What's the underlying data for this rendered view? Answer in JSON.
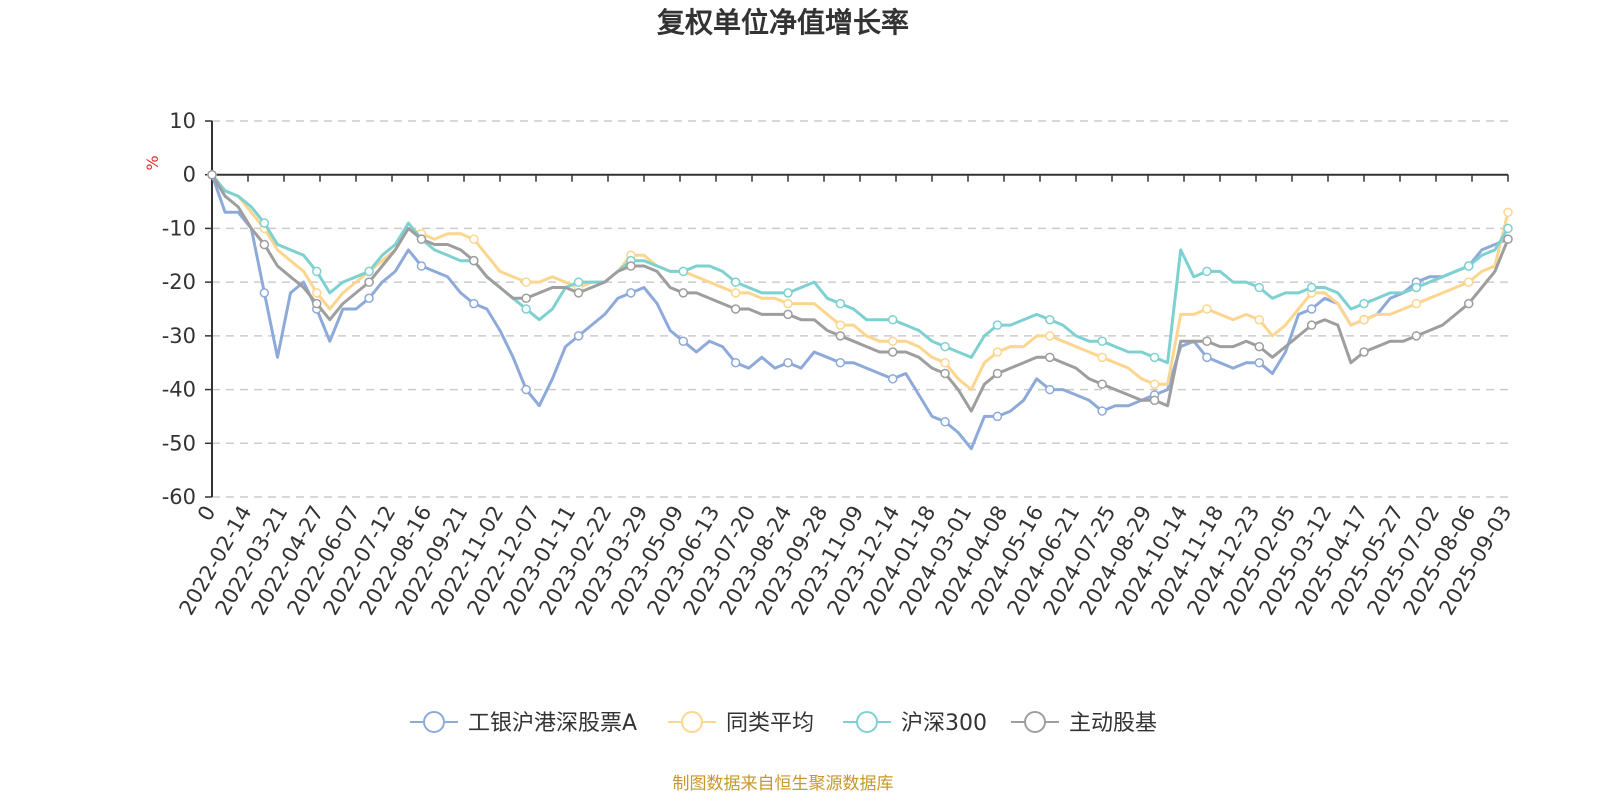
{
  "chart_data": {
    "type": "line",
    "title": "复权单位净值增长率",
    "y_unit": "%",
    "ylim": [
      -60,
      10
    ],
    "yticks": [
      10,
      0,
      -10,
      -20,
      -30,
      -40,
      -50,
      -60
    ],
    "x_start_label": "0",
    "x_tick_labels": [
      "2022-02-14",
      "2022-03-21",
      "2022-04-27",
      "2022-06-07",
      "2022-07-12",
      "2022-08-16",
      "2022-09-21",
      "2022-11-02",
      "2022-12-07",
      "2023-01-11",
      "2023-02-22",
      "2023-03-29",
      "2023-05-09",
      "2023-06-13",
      "2023-07-20",
      "2023-08-24",
      "2023-09-28",
      "2023-11-09",
      "2023-12-14",
      "2024-01-18",
      "2024-03-01",
      "2024-04-08",
      "2024-05-16",
      "2024-06-21",
      "2024-07-25",
      "2024-08-29",
      "2024-10-14",
      "2024-11-18",
      "2024-12-23",
      "2025-02-05",
      "2025-03-12",
      "2025-04-17",
      "2025-05-27",
      "2025-07-02",
      "2025-08-06",
      "2025-09-03"
    ],
    "grid": true,
    "legend_position": "bottom",
    "series": [
      {
        "name": "工银沪港深股票A",
        "color": "#8eaadb",
        "values": [
          0,
          -7,
          -7,
          -10,
          -22,
          -34,
          -22,
          -20,
          -25,
          -31,
          -25,
          -25,
          -23,
          -20,
          -18,
          -14,
          -17,
          -18,
          -19,
          -22,
          -24,
          -25,
          -29,
          -34,
          -40,
          -43,
          -38,
          -32,
          -30,
          -28,
          -26,
          -23,
          -22,
          -21,
          -24,
          -29,
          -31,
          -33,
          -31,
          -32,
          -35,
          -36,
          -34,
          -36,
          -35,
          -36,
          -33,
          -34,
          -35,
          -35,
          -36,
          -37,
          -38,
          -37,
          -41,
          -45,
          -46,
          -48,
          -51,
          -45,
          -45,
          -44,
          -42,
          -38,
          -40,
          -40,
          -41,
          -42,
          -44,
          -43,
          -43,
          -42,
          -41,
          -40,
          -32,
          -31,
          -34,
          -35,
          -36,
          -35,
          -35,
          -37,
          -33,
          -26,
          -25,
          -23,
          -24,
          -28,
          -27,
          -26,
          -23,
          -22,
          -20,
          -19,
          -19,
          -18,
          -17,
          -14,
          -13,
          -12
        ]
      },
      {
        "name": "同类平均",
        "color": "#fcd68e",
        "values": [
          0,
          -3,
          -4,
          -7,
          -10,
          -14,
          -16,
          -18,
          -22,
          -25,
          -22,
          -20,
          -18,
          -16,
          -14,
          -10,
          -11,
          -12,
          -11,
          -11,
          -12,
          -15,
          -18,
          -19,
          -20,
          -20,
          -19,
          -20,
          -21,
          -20,
          -20,
          -18,
          -15,
          -15,
          -17,
          -18,
          -18,
          -19,
          -20,
          -21,
          -22,
          -22,
          -23,
          -23,
          -24,
          -24,
          -24,
          -26,
          -28,
          -28,
          -30,
          -31,
          -31,
          -31,
          -32,
          -34,
          -35,
          -38,
          -40,
          -35,
          -33,
          -32,
          -32,
          -30,
          -30,
          -31,
          -32,
          -33,
          -34,
          -35,
          -36,
          -38,
          -39,
          -39,
          -26,
          -26,
          -25,
          -26,
          -27,
          -26,
          -27,
          -30,
          -28,
          -25,
          -22,
          -22,
          -24,
          -28,
          -27,
          -26,
          -26,
          -25,
          -24,
          -23,
          -22,
          -21,
          -20,
          -18,
          -17,
          -7
        ]
      },
      {
        "name": "沪深300",
        "color": "#7fd1d1",
        "values": [
          0,
          -3,
          -4,
          -6,
          -9,
          -13,
          -14,
          -15,
          -18,
          -22,
          -20,
          -19,
          -18,
          -15,
          -13,
          -9,
          -12,
          -14,
          -15,
          -16,
          -16,
          -19,
          -21,
          -23,
          -25,
          -27,
          -25,
          -21,
          -20,
          -20,
          -20,
          -18,
          -16,
          -16,
          -17,
          -18,
          -18,
          -17,
          -17,
          -18,
          -20,
          -21,
          -22,
          -22,
          -22,
          -21,
          -20,
          -23,
          -24,
          -25,
          -27,
          -27,
          -27,
          -28,
          -29,
          -31,
          -32,
          -33,
          -34,
          -30,
          -28,
          -28,
          -27,
          -26,
          -27,
          -28,
          -30,
          -31,
          -31,
          -32,
          -33,
          -33,
          -34,
          -35,
          -14,
          -19,
          -18,
          -18,
          -20,
          -20,
          -21,
          -23,
          -22,
          -22,
          -21,
          -21,
          -22,
          -25,
          -24,
          -23,
          -22,
          -22,
          -21,
          -20,
          -19,
          -18,
          -17,
          -15,
          -14,
          -10
        ]
      },
      {
        "name": "主动股基",
        "color": "#9e9e9e",
        "values": [
          0,
          -4,
          -6,
          -10,
          -13,
          -17,
          -19,
          -21,
          -24,
          -27,
          -24,
          -22,
          -20,
          -17,
          -14,
          -10,
          -12,
          -13,
          -13,
          -14,
          -16,
          -19,
          -21,
          -23,
          -23,
          -22,
          -21,
          -21,
          -22,
          -21,
          -20,
          -18,
          -17,
          -17,
          -18,
          -21,
          -22,
          -22,
          -23,
          -24,
          -25,
          -25,
          -26,
          -26,
          -26,
          -27,
          -27,
          -29,
          -30,
          -31,
          -32,
          -33,
          -33,
          -33,
          -34,
          -36,
          -37,
          -40,
          -44,
          -39,
          -37,
          -36,
          -35,
          -34,
          -34,
          -35,
          -36,
          -38,
          -39,
          -40,
          -41,
          -42,
          -42,
          -43,
          -31,
          -31,
          -31,
          -32,
          -32,
          -31,
          -32,
          -34,
          -32,
          -30,
          -28,
          -27,
          -28,
          -35,
          -33,
          -32,
          -31,
          -31,
          -30,
          -29,
          -28,
          -26,
          -24,
          -21,
          -18,
          -12
        ]
      }
    ]
  },
  "footer": {
    "source": "制图数据来自恒生聚源数据库"
  }
}
